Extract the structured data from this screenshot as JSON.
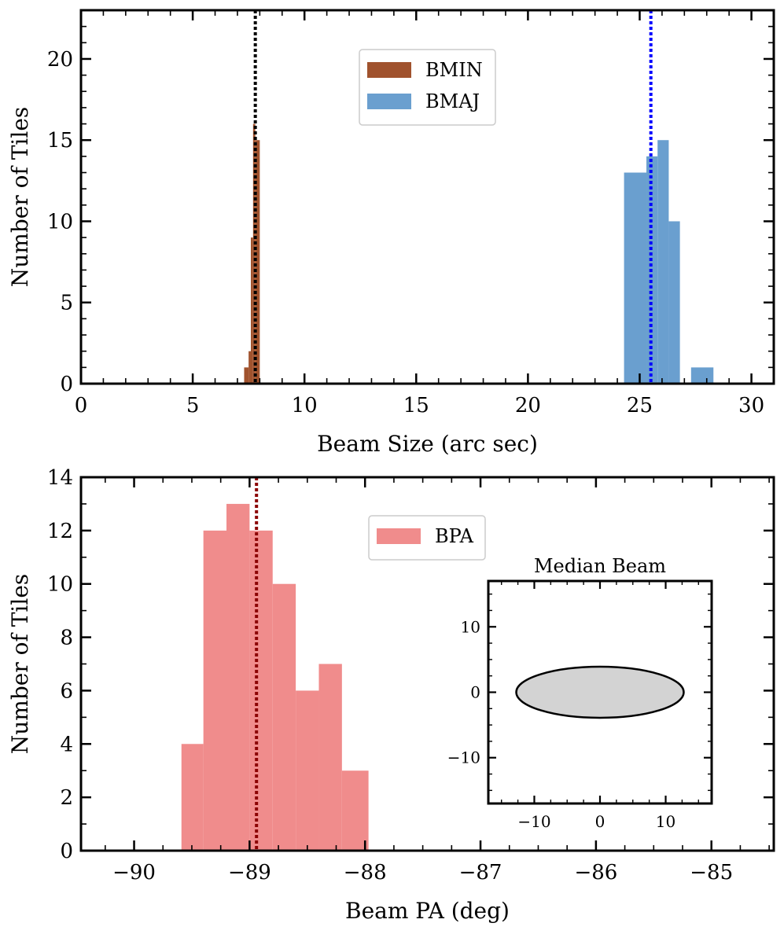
{
  "chart_data": [
    {
      "type": "histogram",
      "xlabel": "Beam Size (arc sec)",
      "ylabel": "Number of Tiles",
      "xlim": [
        0,
        31
      ],
      "ylim": [
        0,
        23
      ],
      "xticks": [
        0,
        5,
        10,
        15,
        20,
        25,
        30
      ],
      "yticks": [
        0,
        5,
        10,
        15,
        20
      ],
      "legend_position": "top-center",
      "series": [
        {
          "name": "BMIN",
          "color": "#a0522d",
          "bins": [
            {
              "x0": 7.3,
              "x1": 7.5,
              "count": 1
            },
            {
              "x0": 7.5,
              "x1": 7.6,
              "count": 2
            },
            {
              "x0": 7.6,
              "x1": 7.7,
              "count": 9
            },
            {
              "x0": 7.7,
              "x1": 7.8,
              "count": 16
            },
            {
              "x0": 7.8,
              "x1": 8.0,
              "count": 15
            }
          ]
        },
        {
          "name": "BMAJ",
          "color": "#6a9fcf",
          "bins": [
            {
              "x0": 24.3,
              "x1": 25.3,
              "count": 13
            },
            {
              "x0": 25.3,
              "x1": 25.8,
              "count": 14
            },
            {
              "x0": 25.8,
              "x1": 26.3,
              "count": 15
            },
            {
              "x0": 26.3,
              "x1": 26.8,
              "count": 10
            },
            {
              "x0": 26.8,
              "x1": 27.3,
              "count": 0
            },
            {
              "x0": 27.3,
              "x1": 28.3,
              "count": 1
            }
          ]
        }
      ],
      "median_lines": [
        {
          "x": 7.8,
          "color": "#000000"
        },
        {
          "x": 25.5,
          "color": "#0000ff"
        }
      ]
    },
    {
      "type": "histogram",
      "xlabel": "Beam PA (deg)",
      "ylabel": "Number of Tiles",
      "xlim": [
        -90.46,
        -84.46
      ],
      "ylim": [
        0,
        14
      ],
      "xticks": [
        -90,
        -89,
        -88,
        -87,
        -86,
        -85
      ],
      "yticks": [
        0,
        2,
        4,
        6,
        8,
        10,
        12,
        14
      ],
      "legend_position": "top-center",
      "series": [
        {
          "name": "BPA",
          "color": "#f08c8c",
          "bins": [
            {
              "x0": -89.59,
              "x1": -89.4,
              "count": 4
            },
            {
              "x0": -89.4,
              "x1": -89.2,
              "count": 12
            },
            {
              "x0": -89.2,
              "x1": -89.0,
              "count": 13
            },
            {
              "x0": -89.0,
              "x1": -88.8,
              "count": 12
            },
            {
              "x0": -88.8,
              "x1": -88.6,
              "count": 10
            },
            {
              "x0": -88.6,
              "x1": -88.4,
              "count": 6
            },
            {
              "x0": -88.4,
              "x1": -88.2,
              "count": 7
            },
            {
              "x0": -88.2,
              "x1": -87.97,
              "count": 3
            }
          ]
        }
      ],
      "median_lines": [
        {
          "x": -88.94,
          "color": "#8b0000"
        }
      ],
      "inset": {
        "type": "ellipse",
        "title": "Median Beam",
        "xlim": [
          -17,
          17
        ],
        "ylim": [
          -17,
          17
        ],
        "xticks": [
          -10,
          0,
          10
        ],
        "yticks": [
          -10,
          0,
          10
        ],
        "ellipse": {
          "cx": 0,
          "cy": 0,
          "width": 25.5,
          "height": 7.8,
          "fill": "#d3d3d3",
          "stroke": "#000000"
        }
      }
    }
  ]
}
